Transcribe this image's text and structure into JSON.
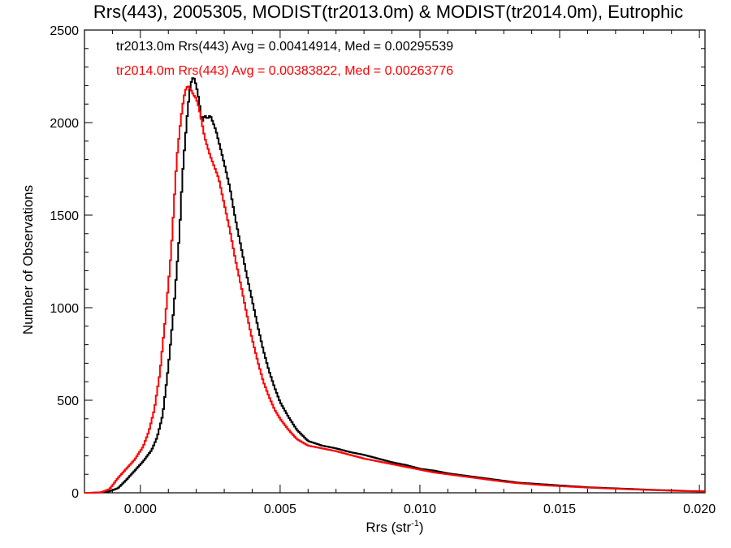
{
  "chart_data": {
    "type": "line",
    "title": "Rrs(443), 2005305, MODIST(tr2013.0m) & MODIST(tr2014.0m), Eutrophic",
    "xlabel": "Rrs (str",
    "xlabel_sup": "-1",
    "xlabel_end": ")",
    "ylabel": "Number of Observations",
    "xlim": [
      -0.002,
      0.0202
    ],
    "ylim": [
      0,
      2500
    ],
    "xticks": [
      0.0,
      0.005,
      0.01,
      0.015,
      0.02
    ],
    "xtick_labels": [
      "0.000",
      "0.005",
      "0.010",
      "0.015",
      "0.020"
    ],
    "yticks": [
      0,
      500,
      1000,
      1500,
      2000,
      2500
    ],
    "ytick_labels": [
      "0",
      "500",
      "1000",
      "1500",
      "2000",
      "2500"
    ],
    "grid": false,
    "legend_position": "top-left",
    "series": [
      {
        "name": "tr2013.0m Rrs(443) Avg = 0.00414914, Med = 0.00295539",
        "color": "#000000",
        "points": [
          [
            -0.0018,
            0
          ],
          [
            -0.0012,
            3
          ],
          [
            -0.0008,
            25
          ],
          [
            -0.0005,
            70
          ],
          [
            -0.0002,
            120
          ],
          [
            0.0001,
            170
          ],
          [
            0.0004,
            230
          ],
          [
            0.0006,
            300
          ],
          [
            0.0008,
            420
          ],
          [
            0.001,
            680
          ],
          [
            0.0012,
            1000
          ],
          [
            0.0014,
            1400
          ],
          [
            0.0015,
            1700
          ],
          [
            0.0016,
            1900
          ],
          [
            0.0017,
            2080
          ],
          [
            0.0018,
            2210
          ],
          [
            0.0019,
            2250
          ],
          [
            0.002,
            2200
          ],
          [
            0.0021,
            2120
          ],
          [
            0.0022,
            2000
          ],
          [
            0.0023,
            2040
          ],
          [
            0.0024,
            2020
          ],
          [
            0.0025,
            2040
          ],
          [
            0.0026,
            2000
          ],
          [
            0.0027,
            1960
          ],
          [
            0.0028,
            1900
          ],
          [
            0.003,
            1780
          ],
          [
            0.0032,
            1650
          ],
          [
            0.0034,
            1480
          ],
          [
            0.0036,
            1330
          ],
          [
            0.0038,
            1180
          ],
          [
            0.004,
            1040
          ],
          [
            0.0042,
            900
          ],
          [
            0.0044,
            770
          ],
          [
            0.0046,
            660
          ],
          [
            0.0048,
            570
          ],
          [
            0.005,
            490
          ],
          [
            0.0053,
            410
          ],
          [
            0.0056,
            340
          ],
          [
            0.006,
            280
          ],
          [
            0.0065,
            255
          ],
          [
            0.007,
            240
          ],
          [
            0.0075,
            220
          ],
          [
            0.008,
            205
          ],
          [
            0.0085,
            185
          ],
          [
            0.009,
            165
          ],
          [
            0.0095,
            150
          ],
          [
            0.01,
            130
          ],
          [
            0.0105,
            120
          ],
          [
            0.011,
            105
          ],
          [
            0.0115,
            95
          ],
          [
            0.012,
            85
          ],
          [
            0.0125,
            75
          ],
          [
            0.013,
            65
          ],
          [
            0.0135,
            55
          ],
          [
            0.014,
            50
          ],
          [
            0.0145,
            45
          ],
          [
            0.015,
            40
          ],
          [
            0.0155,
            35
          ],
          [
            0.016,
            30
          ],
          [
            0.0165,
            27
          ],
          [
            0.017,
            24
          ],
          [
            0.0175,
            21
          ],
          [
            0.018,
            18
          ],
          [
            0.0185,
            15
          ],
          [
            0.019,
            13
          ],
          [
            0.0195,
            10
          ],
          [
            0.02,
            8
          ]
        ]
      },
      {
        "name": "tr2014.0m Rrs(443) Avg = 0.00383822, Med = 0.00263776",
        "color": "#ff0000",
        "points": [
          [
            -0.0018,
            0
          ],
          [
            -0.0014,
            3
          ],
          [
            -0.0011,
            20
          ],
          [
            -0.0008,
            80
          ],
          [
            -0.0005,
            130
          ],
          [
            -0.0002,
            180
          ],
          [
            0.0001,
            250
          ],
          [
            0.0003,
            330
          ],
          [
            0.0005,
            450
          ],
          [
            0.0007,
            650
          ],
          [
            0.0009,
            950
          ],
          [
            0.0011,
            1300
          ],
          [
            0.0012,
            1550
          ],
          [
            0.0013,
            1800
          ],
          [
            0.0014,
            1950
          ],
          [
            0.0015,
            2080
          ],
          [
            0.0016,
            2170
          ],
          [
            0.0017,
            2200
          ],
          [
            0.0018,
            2180
          ],
          [
            0.0019,
            2150
          ],
          [
            0.002,
            2130
          ],
          [
            0.0021,
            2080
          ],
          [
            0.0022,
            2000
          ],
          [
            0.0023,
            1920
          ],
          [
            0.0024,
            1870
          ],
          [
            0.0025,
            1820
          ],
          [
            0.0026,
            1780
          ],
          [
            0.0028,
            1700
          ],
          [
            0.003,
            1560
          ],
          [
            0.0032,
            1420
          ],
          [
            0.0034,
            1260
          ],
          [
            0.0036,
            1120
          ],
          [
            0.0038,
            970
          ],
          [
            0.004,
            830
          ],
          [
            0.0042,
            710
          ],
          [
            0.0044,
            600
          ],
          [
            0.0046,
            520
          ],
          [
            0.0048,
            450
          ],
          [
            0.005,
            400
          ],
          [
            0.0053,
            340
          ],
          [
            0.0056,
            290
          ],
          [
            0.006,
            255
          ],
          [
            0.0065,
            240
          ],
          [
            0.007,
            225
          ],
          [
            0.0075,
            205
          ],
          [
            0.008,
            185
          ],
          [
            0.0085,
            170
          ],
          [
            0.009,
            155
          ],
          [
            0.0095,
            140
          ],
          [
            0.01,
            125
          ],
          [
            0.0105,
            110
          ],
          [
            0.011,
            100
          ],
          [
            0.0115,
            90
          ],
          [
            0.012,
            80
          ],
          [
            0.0125,
            70
          ],
          [
            0.013,
            60
          ],
          [
            0.0135,
            52
          ],
          [
            0.014,
            46
          ],
          [
            0.0145,
            40
          ],
          [
            0.015,
            36
          ],
          [
            0.0155,
            32
          ],
          [
            0.016,
            28
          ],
          [
            0.0165,
            25
          ],
          [
            0.017,
            22
          ],
          [
            0.0175,
            19
          ],
          [
            0.018,
            16
          ],
          [
            0.0185,
            14
          ],
          [
            0.019,
            11
          ],
          [
            0.0195,
            9
          ],
          [
            0.02,
            7
          ]
        ]
      }
    ]
  }
}
